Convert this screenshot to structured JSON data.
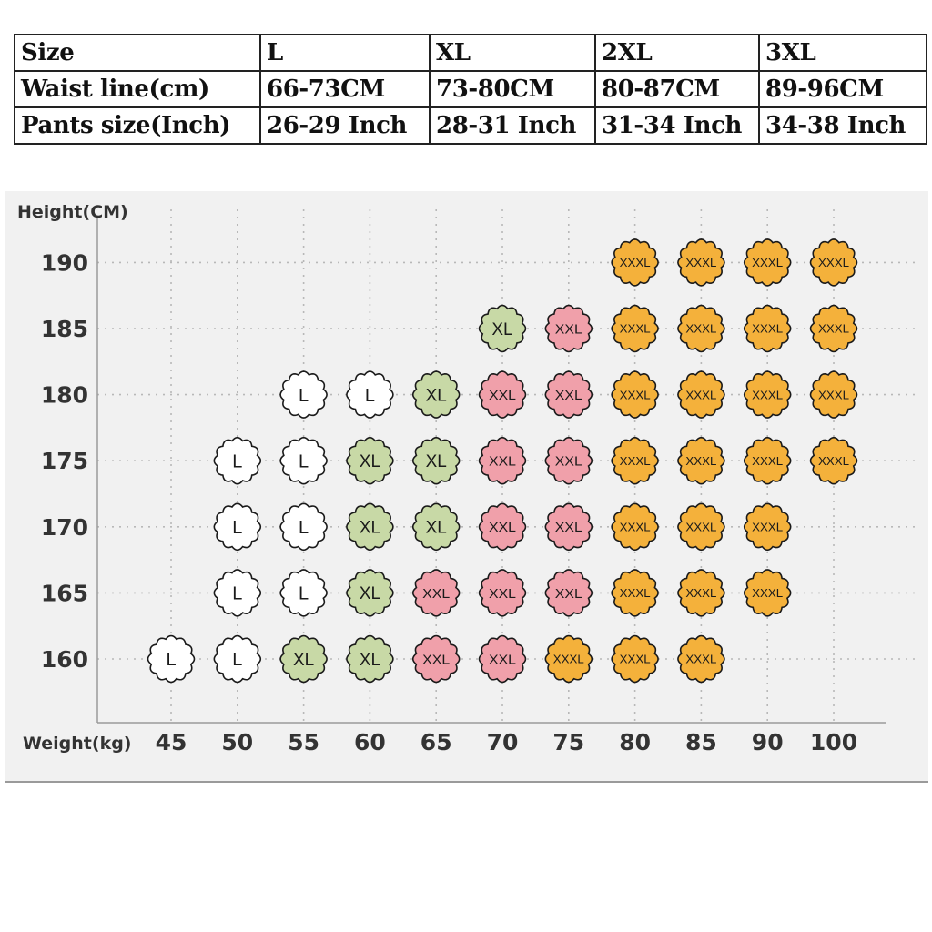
{
  "size_table": {
    "rows": [
      {
        "label": "Size",
        "values": [
          "L",
          "XL",
          "2XL",
          "3XL"
        ]
      },
      {
        "label": "Waist line(cm)",
        "values": [
          "66-73CM",
          "73-80CM",
          "80-87CM",
          "89-96CM"
        ]
      },
      {
        "label": "Pants size(Inch)",
        "values": [
          "26-29 Inch",
          "28-31 Inch",
          "31-34 Inch",
          "34-38 Inch"
        ]
      }
    ]
  },
  "chart_data": {
    "type": "scatter",
    "ylabel": "Height(CM)",
    "xlabel": "Weight(kg)",
    "x_ticks": [
      "45",
      "50",
      "55",
      "60",
      "65",
      "70",
      "75",
      "80",
      "85",
      "90",
      "100"
    ],
    "y_ticks": [
      "160",
      "165",
      "170",
      "175",
      "180",
      "185",
      "190"
    ],
    "grid": true,
    "colors": {
      "L": "#ffffff",
      "XL": "#c8d9a6",
      "XXL": "#f0a0aa",
      "XXXL": "#f4b13b"
    },
    "points": [
      {
        "weight": "45",
        "height": "160",
        "size": "L"
      },
      {
        "weight": "50",
        "height": "160",
        "size": "L"
      },
      {
        "weight": "55",
        "height": "160",
        "size": "XL"
      },
      {
        "weight": "60",
        "height": "160",
        "size": "XL"
      },
      {
        "weight": "65",
        "height": "160",
        "size": "XXL"
      },
      {
        "weight": "70",
        "height": "160",
        "size": "XXL"
      },
      {
        "weight": "75",
        "height": "160",
        "size": "XXXL"
      },
      {
        "weight": "80",
        "height": "160",
        "size": "XXXL"
      },
      {
        "weight": "85",
        "height": "160",
        "size": "XXXL"
      },
      {
        "weight": "50",
        "height": "165",
        "size": "L"
      },
      {
        "weight": "55",
        "height": "165",
        "size": "L"
      },
      {
        "weight": "60",
        "height": "165",
        "size": "XL"
      },
      {
        "weight": "65",
        "height": "165",
        "size": "XXL"
      },
      {
        "weight": "70",
        "height": "165",
        "size": "XXL"
      },
      {
        "weight": "75",
        "height": "165",
        "size": "XXL"
      },
      {
        "weight": "80",
        "height": "165",
        "size": "XXXL"
      },
      {
        "weight": "85",
        "height": "165",
        "size": "XXXL"
      },
      {
        "weight": "90",
        "height": "165",
        "size": "XXXL"
      },
      {
        "weight": "50",
        "height": "170",
        "size": "L"
      },
      {
        "weight": "55",
        "height": "170",
        "size": "L"
      },
      {
        "weight": "60",
        "height": "170",
        "size": "XL"
      },
      {
        "weight": "65",
        "height": "170",
        "size": "XL"
      },
      {
        "weight": "70",
        "height": "170",
        "size": "XXL"
      },
      {
        "weight": "75",
        "height": "170",
        "size": "XXL"
      },
      {
        "weight": "80",
        "height": "170",
        "size": "XXXL"
      },
      {
        "weight": "85",
        "height": "170",
        "size": "XXXL"
      },
      {
        "weight": "90",
        "height": "170",
        "size": "XXXL"
      },
      {
        "weight": "50",
        "height": "175",
        "size": "L"
      },
      {
        "weight": "55",
        "height": "175",
        "size": "L"
      },
      {
        "weight": "60",
        "height": "175",
        "size": "XL"
      },
      {
        "weight": "65",
        "height": "175",
        "size": "XL"
      },
      {
        "weight": "70",
        "height": "175",
        "size": "XXL"
      },
      {
        "weight": "75",
        "height": "175",
        "size": "XXL"
      },
      {
        "weight": "80",
        "height": "175",
        "size": "XXXL"
      },
      {
        "weight": "85",
        "height": "175",
        "size": "XXXL"
      },
      {
        "weight": "90",
        "height": "175",
        "size": "XXXL"
      },
      {
        "weight": "100",
        "height": "175",
        "size": "XXXL"
      },
      {
        "weight": "55",
        "height": "180",
        "size": "L"
      },
      {
        "weight": "60",
        "height": "180",
        "size": "L"
      },
      {
        "weight": "65",
        "height": "180",
        "size": "XL"
      },
      {
        "weight": "70",
        "height": "180",
        "size": "XXL"
      },
      {
        "weight": "75",
        "height": "180",
        "size": "XXL"
      },
      {
        "weight": "80",
        "height": "180",
        "size": "XXXL"
      },
      {
        "weight": "85",
        "height": "180",
        "size": "XXXL"
      },
      {
        "weight": "90",
        "height": "180",
        "size": "XXXL"
      },
      {
        "weight": "100",
        "height": "180",
        "size": "XXXL"
      },
      {
        "weight": "70",
        "height": "185",
        "size": "XL"
      },
      {
        "weight": "75",
        "height": "185",
        "size": "XXL"
      },
      {
        "weight": "80",
        "height": "185",
        "size": "XXXL"
      },
      {
        "weight": "85",
        "height": "185",
        "size": "XXXL"
      },
      {
        "weight": "90",
        "height": "185",
        "size": "XXXL"
      },
      {
        "weight": "100",
        "height": "185",
        "size": "XXXL"
      },
      {
        "weight": "80",
        "height": "190",
        "size": "XXXL"
      },
      {
        "weight": "85",
        "height": "190",
        "size": "XXXL"
      },
      {
        "weight": "90",
        "height": "190",
        "size": "XXXL"
      },
      {
        "weight": "100",
        "height": "190",
        "size": "XXXL"
      }
    ]
  }
}
